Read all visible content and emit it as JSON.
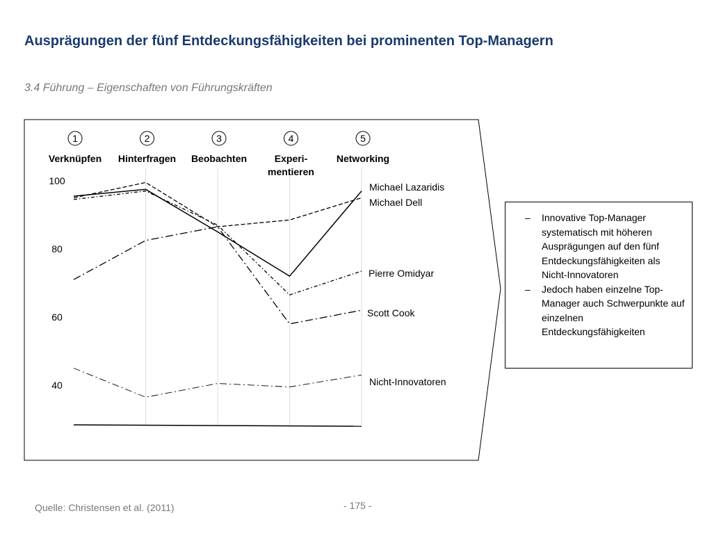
{
  "slide": {
    "title": "Ausprägungen der fünf Entdeckungsfähigkeiten bei prominenten Top-Managern",
    "subtitle": "3.4 Führung – Eigenschaften von Führungskräften",
    "source": "Quelle: Christensen et al. (2011)",
    "page": "- 175 -"
  },
  "chart_data": {
    "type": "line",
    "categories": [
      {
        "num": "1",
        "label": [
          "Verknüpfen"
        ]
      },
      {
        "num": "2",
        "label": [
          "Hinterfragen"
        ]
      },
      {
        "num": "3",
        "label": [
          "Beobachten"
        ]
      },
      {
        "num": "4",
        "label": [
          "Experi-",
          "mentieren"
        ]
      },
      {
        "num": "5",
        "label": [
          "Networking"
        ]
      }
    ],
    "y_ticks": [
      100,
      80,
      60,
      40
    ],
    "ylim": [
      30,
      100
    ],
    "grid": "vertical",
    "series": [
      {
        "name": [
          "Michael Lazaridis"
        ],
        "style": "solid",
        "values": [
          95.5,
          97.5,
          85,
          72,
          97
        ]
      },
      {
        "name": [
          "Michael Dell"
        ],
        "style": "dashed",
        "values": [
          95,
          99.5,
          86.5,
          88.5,
          95
        ]
      },
      {
        "name": [
          "Pierre Omidyar"
        ],
        "style": "dashdot-short",
        "values": [
          94.5,
          97,
          87,
          66.5,
          73.5
        ]
      },
      {
        "name": [
          "Scott Cook"
        ],
        "style": "dashdot-long",
        "values": [
          71,
          82.5,
          86.5,
          58,
          62
        ]
      },
      {
        "name": [
          "Nicht-Innovatoren"
        ],
        "style": "dashdot-thin",
        "values": [
          45,
          36.5,
          40.5,
          39.5,
          43
        ]
      }
    ]
  },
  "notes": [
    {
      "dash": "–",
      "text": "Innovative Top-Manager systematisch mit höheren Ausprägungen auf den fünf Entdeckungsfähigkeiten als Nicht-Innovatoren"
    },
    {
      "dash": "–",
      "text": "Jedoch haben einzelne Top-Manager auch Schwerpunkte auf einzelnen Entdeckungsfähigkeiten"
    }
  ]
}
